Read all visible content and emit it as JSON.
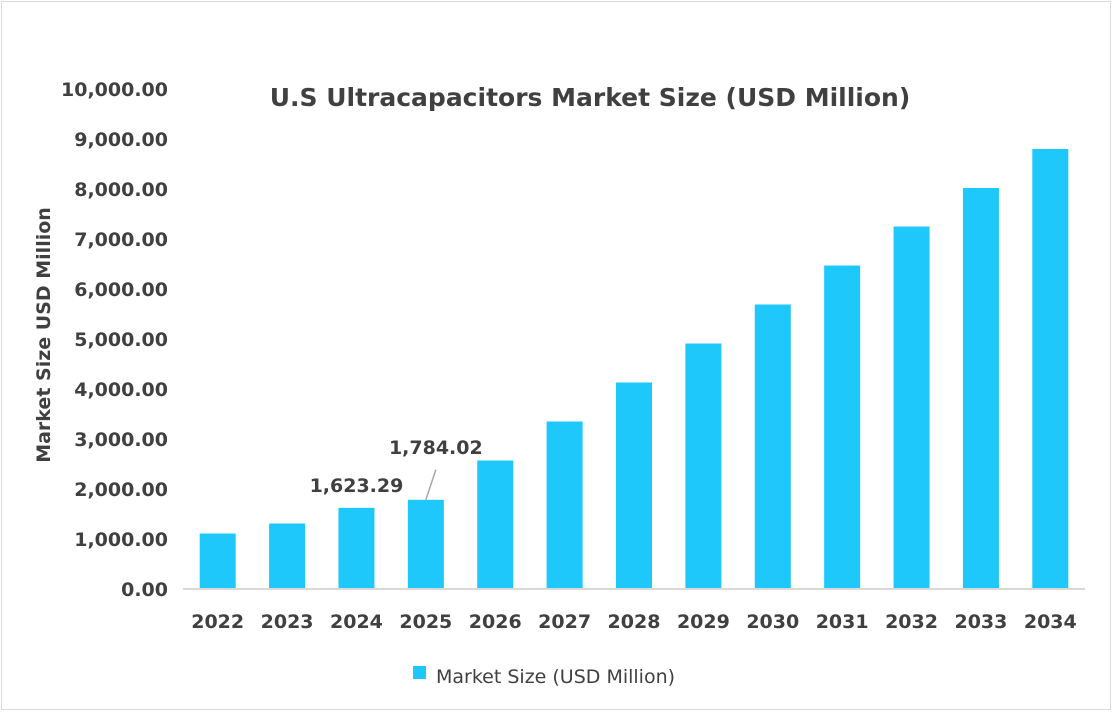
{
  "chart_data": {
    "type": "bar",
    "title": "U.S Ultracapacitors Market Size (USD Million)",
    "xlabel": "",
    "ylabel": "Market Size USD Million",
    "categories": [
      "2022",
      "2023",
      "2024",
      "2025",
      "2026",
      "2027",
      "2028",
      "2029",
      "2030",
      "2031",
      "2032",
      "2033",
      "2034"
    ],
    "series": [
      {
        "name": "Market Size (USD Million)",
        "color": "#1ec8fb",
        "values": [
          1110,
          1310,
          1623.29,
          1784.02,
          2570,
          3350,
          4130,
          4910,
          5690,
          6470,
          7250,
          8020,
          8800
        ]
      }
    ],
    "data_labels": [
      {
        "index": 2,
        "text": "1,623.29"
      },
      {
        "index": 3,
        "text": "1,784.02"
      }
    ],
    "ylim": [
      0,
      10000
    ],
    "yticks": [
      "0.00",
      "1,000.00",
      "2,000.00",
      "3,000.00",
      "4,000.00",
      "5,000.00",
      "6,000.00",
      "7,000.00",
      "8,000.00",
      "9,000.00",
      "10,000.00"
    ],
    "grid": false,
    "legend": "bottom"
  }
}
